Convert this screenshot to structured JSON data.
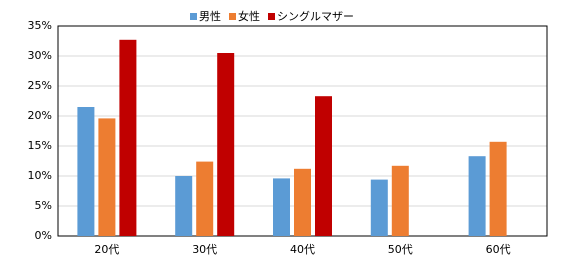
{
  "chart_data": {
    "type": "bar",
    "categories": [
      "20代",
      "30代",
      "40代",
      "50代",
      "60代"
    ],
    "series": [
      {
        "name": "男性",
        "color": "#5b9bd5",
        "values": [
          21.5,
          10.0,
          9.6,
          9.4,
          13.3
        ]
      },
      {
        "name": "女性",
        "color": "#ed7d31",
        "values": [
          19.6,
          12.4,
          11.2,
          11.7,
          15.7
        ]
      },
      {
        "name": "シングルマザー",
        "color": "#c00000",
        "values": [
          32.7,
          30.5,
          23.3,
          null,
          null
        ]
      }
    ],
    "ylim": [
      0,
      35
    ],
    "yticks": [
      {
        "value": 0,
        "label": "0%"
      },
      {
        "value": 5,
        "label": "5%"
      },
      {
        "value": 10,
        "label": "10%"
      },
      {
        "value": 15,
        "label": "15%"
      },
      {
        "value": 20,
        "label": "20%"
      },
      {
        "value": 25,
        "label": "25%"
      },
      {
        "value": 30,
        "label": "30%"
      },
      {
        "value": 35,
        "label": "35%"
      }
    ],
    "grid": true,
    "legend": "top"
  }
}
